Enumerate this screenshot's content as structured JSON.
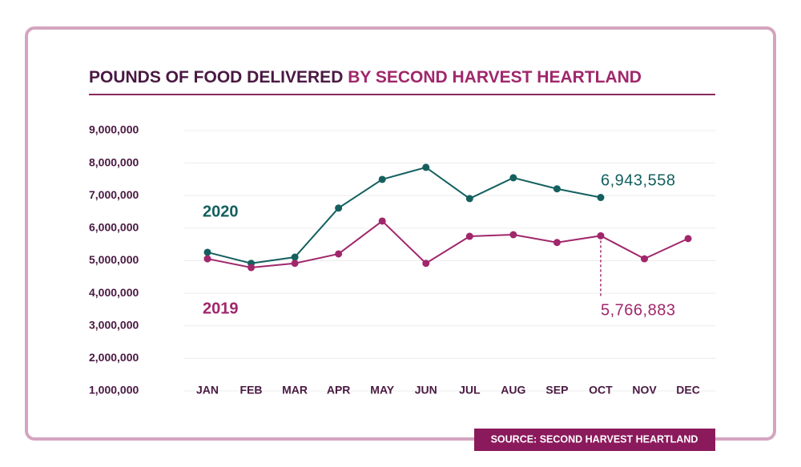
{
  "chart_data": {
    "type": "line",
    "title": {
      "main": "POUNDS OF FOOD DELIVERED",
      "highlight": "BY SECOND HARVEST HEARTLAND"
    },
    "categories": [
      "JAN",
      "FEB",
      "MAR",
      "APR",
      "MAY",
      "JUN",
      "JUL",
      "AUG",
      "SEP",
      "OCT",
      "NOV",
      "DEC"
    ],
    "series": [
      {
        "name": "2020",
        "color": "#14605f",
        "values": [
          5260000,
          4920000,
          5110000,
          6620000,
          7500000,
          7870000,
          6910000,
          7550000,
          7210000,
          6943558,
          null,
          null
        ],
        "value_labels": [
          null,
          null,
          null,
          null,
          null,
          null,
          null,
          null,
          null,
          "6,943,558",
          null,
          null
        ]
      },
      {
        "name": "2019",
        "color": "#a0276b",
        "values": [
          5060000,
          4790000,
          4920000,
          5210000,
          6220000,
          4920000,
          5750000,
          5800000,
          5560000,
          5766883,
          5060000,
          5680000
        ],
        "value_labels": [
          null,
          null,
          null,
          null,
          null,
          null,
          null,
          null,
          null,
          "5,766,883",
          null,
          null
        ]
      }
    ],
    "ylim": [
      1000000,
      9000000
    ],
    "yticks": [
      {
        "value": 1000000,
        "label": "1,000,000"
      },
      {
        "value": 2000000,
        "label": "2,000,000"
      },
      {
        "value": 3000000,
        "label": "3,000,000"
      },
      {
        "value": 4000000,
        "label": "4,000,000"
      },
      {
        "value": 5000000,
        "label": "5,000,000"
      },
      {
        "value": 6000000,
        "label": "6,000,000"
      },
      {
        "value": 7000000,
        "label": "7,000,000"
      },
      {
        "value": 8000000,
        "label": "8,000,000"
      },
      {
        "value": 9000000,
        "label": "9,000,000"
      }
    ],
    "grid": true,
    "source": "SOURCE: SECOND HARVEST HEARTLAND"
  }
}
